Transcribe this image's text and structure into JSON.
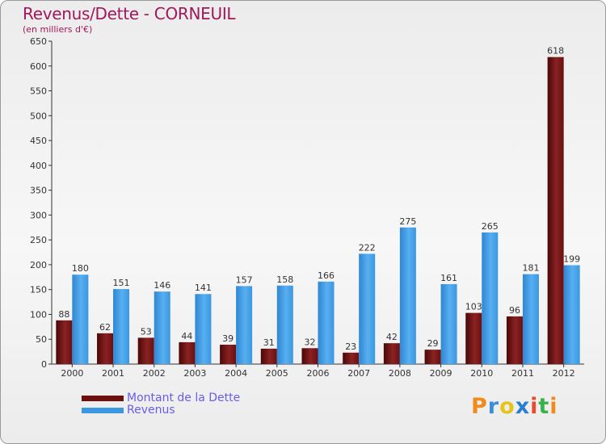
{
  "header": {
    "title": "Revenus/Dette - CORNEUIL",
    "subtitle": "(en milliers d'€)"
  },
  "legend": {
    "items": [
      {
        "label": "Montant de la Dette",
        "color": "#6e0f0f"
      },
      {
        "label": "Revenus",
        "color": "#3b97e0"
      }
    ]
  },
  "logo": {
    "letters": [
      "P",
      "r",
      "o",
      "x",
      "i",
      "t",
      "i"
    ],
    "colors": [
      "#f08a1c",
      "#3b8fd8",
      "#e8c41a",
      "#2a7fd0",
      "#e84a2a",
      "#38b24a",
      "#f08a1c"
    ]
  },
  "colors": {
    "debt": "#7a1616",
    "revenue": "#3b97e0",
    "title": "#a0185a"
  },
  "chart_data": {
    "type": "bar",
    "title": "Revenus/Dette - CORNEUIL",
    "ylabel": "(en milliers d'€)",
    "xlabel": "",
    "ylim": [
      0,
      650
    ],
    "yticks": [
      0,
      50,
      100,
      150,
      200,
      250,
      300,
      350,
      400,
      450,
      500,
      550,
      600,
      650
    ],
    "grid": false,
    "categories": [
      "2000",
      "2001",
      "2002",
      "2003",
      "2004",
      "2005",
      "2006",
      "2007",
      "2008",
      "2009",
      "2010",
      "2011",
      "2012"
    ],
    "series": [
      {
        "name": "Montant de la Dette",
        "values": [
          88,
          62,
          53,
          44,
          39,
          31,
          32,
          23,
          42,
          29,
          103,
          96,
          618
        ]
      },
      {
        "name": "Revenus",
        "values": [
          180,
          151,
          146,
          141,
          157,
          158,
          166,
          222,
          275,
          161,
          265,
          181,
          199
        ]
      }
    ]
  }
}
